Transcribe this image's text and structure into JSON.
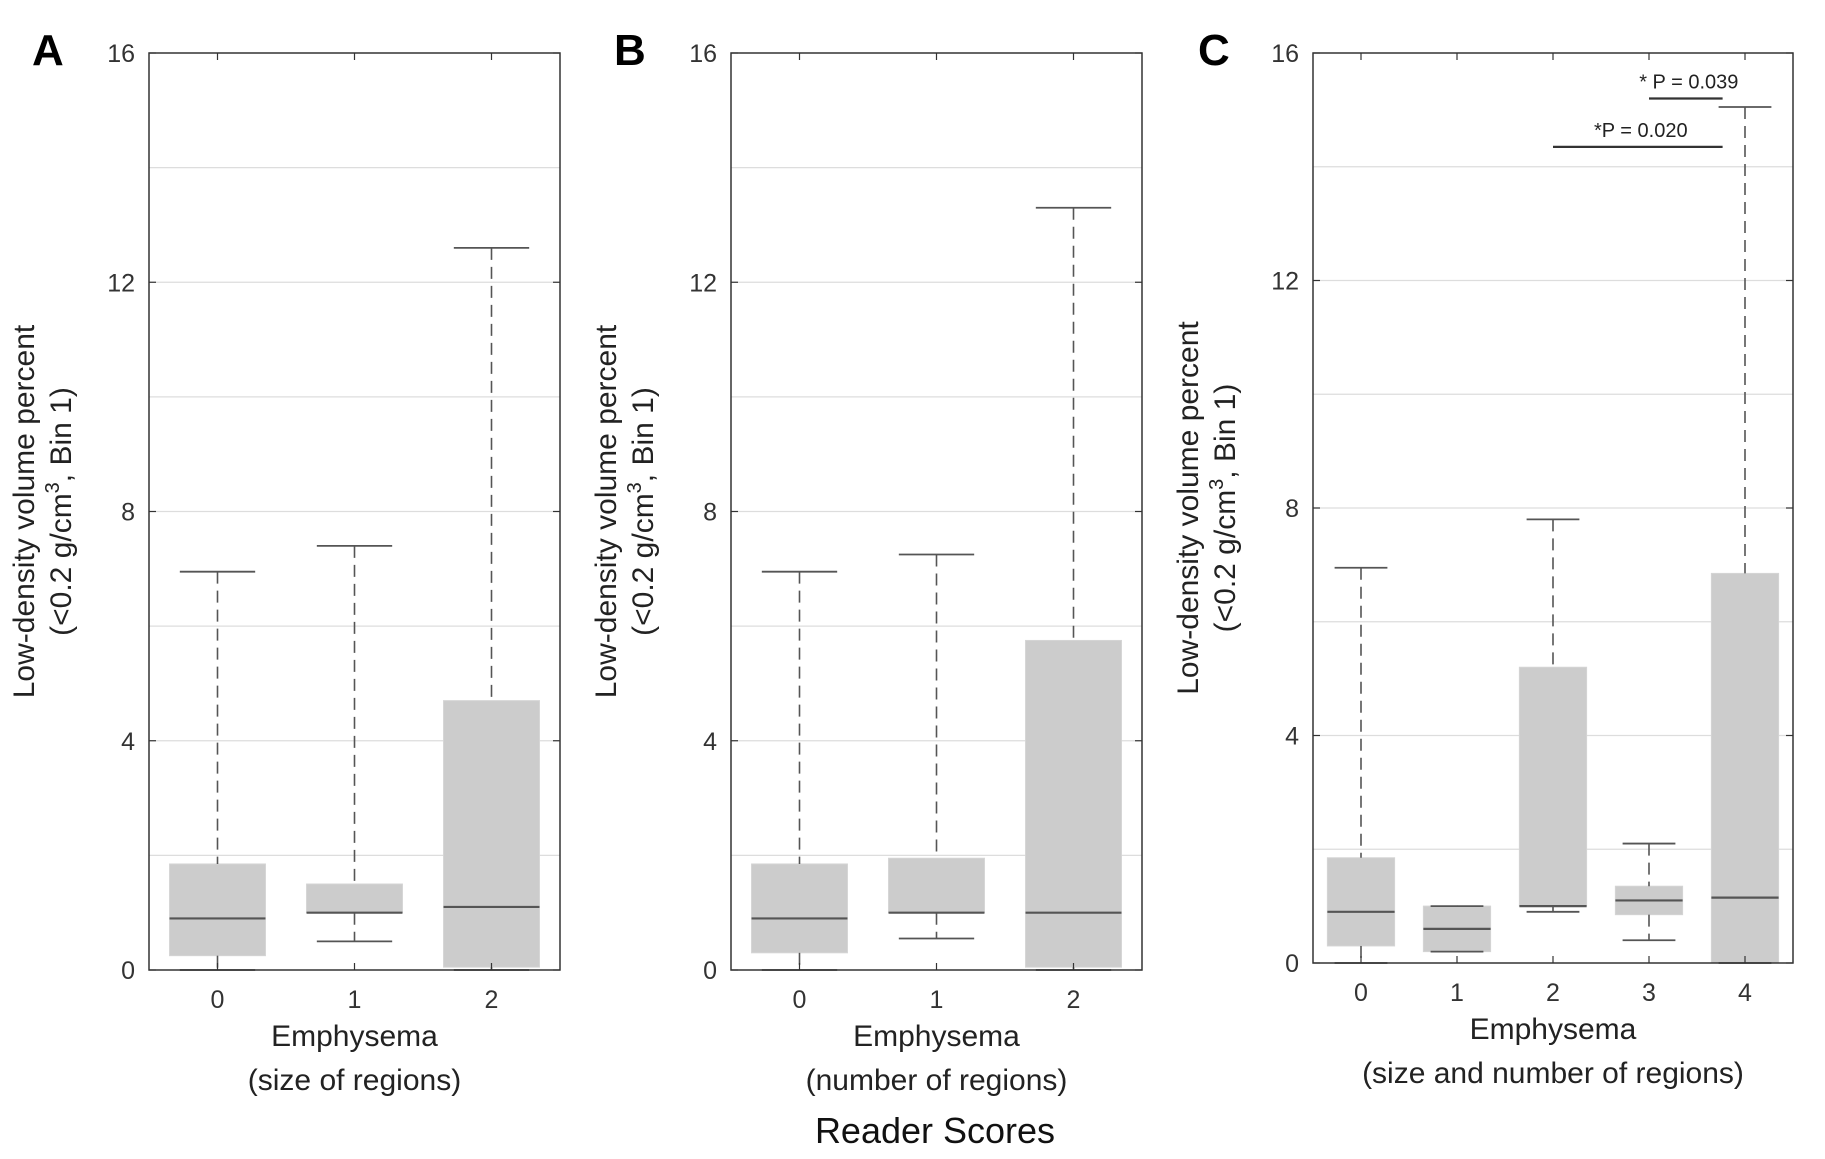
{
  "figure": {
    "xlabel": "Reader Scores",
    "colors": {
      "box": "#cccccc",
      "median": "#555555",
      "whisker": "#555555",
      "grid": "#dddddd",
      "frame": "#333333",
      "sig_line": "#333333"
    }
  },
  "chart_data": [
    {
      "panel": "A",
      "type": "box",
      "title": "",
      "categories": [
        "0",
        "1",
        "2"
      ],
      "boxes": [
        {
          "min": 0.0,
          "q1": 0.25,
          "median": 0.9,
          "q3": 1.85,
          "max": 6.95
        },
        {
          "min": 0.5,
          "q1": 1.0,
          "median": 1.0,
          "q3": 1.5,
          "max": 7.4
        },
        {
          "min": 0.0,
          "q1": 0.05,
          "median": 1.1,
          "q3": 4.7,
          "max": 12.6
        }
      ],
      "ylim": [
        0,
        16
      ],
      "yticks": [
        "0",
        "4",
        "8",
        "12",
        "16"
      ],
      "ylabel_line1": "Low-density volume percent",
      "ylabel_line2_pre": "(<0.2 g/cm",
      "ylabel_line2_sup": "3",
      "ylabel_line2_post": ", Bin 1)",
      "xlabel_line1": "Emphysema",
      "xlabel_line2": "(size of regions)",
      "significance": []
    },
    {
      "panel": "B",
      "type": "box",
      "title": "",
      "categories": [
        "0",
        "1",
        "2"
      ],
      "boxes": [
        {
          "min": 0.0,
          "q1": 0.3,
          "median": 0.9,
          "q3": 1.85,
          "max": 6.95
        },
        {
          "min": 0.55,
          "q1": 1.0,
          "median": 1.0,
          "q3": 1.95,
          "max": 7.25
        },
        {
          "min": 0.0,
          "q1": 0.05,
          "median": 1.0,
          "q3": 5.75,
          "max": 13.3
        }
      ],
      "ylim": [
        0,
        16
      ],
      "yticks": [
        "0",
        "4",
        "8",
        "12",
        "16"
      ],
      "ylabel_line1": "Low-density volume percent",
      "ylabel_line2_pre": "(<0.2 g/cm",
      "ylabel_line2_sup": "3",
      "ylabel_line2_post": ", Bin 1)",
      "xlabel_line1": "Emphysema",
      "xlabel_line2": "(number of regions)",
      "significance": []
    },
    {
      "panel": "C",
      "type": "box",
      "title": "",
      "categories": [
        "0",
        "1",
        "2",
        "3",
        "4"
      ],
      "boxes": [
        {
          "min": 0.0,
          "q1": 0.3,
          "median": 0.9,
          "q3": 1.85,
          "max": 6.95
        },
        {
          "min": 0.2,
          "q1": 0.2,
          "median": 0.6,
          "q3": 1.0,
          "max": 1.0
        },
        {
          "min": 0.9,
          "q1": 1.0,
          "median": 1.0,
          "q3": 5.2,
          "max": 7.8
        },
        {
          "min": 0.4,
          "q1": 0.85,
          "median": 1.1,
          "q3": 1.35,
          "max": 2.1
        },
        {
          "min": 0.0,
          "q1": 0.0,
          "median": 1.15,
          "q3": 6.85,
          "max": 15.05
        }
      ],
      "ylim": [
        0,
        16
      ],
      "yticks": [
        "0",
        "4",
        "8",
        "12",
        "16"
      ],
      "ylabel_line1": "Low-density volume percent",
      "ylabel_line2_pre": "(<0.2 g/cm",
      "ylabel_line2_sup": "3",
      "ylabel_line2_post": ", Bin 1)",
      "xlabel_line1": "Emphysema",
      "xlabel_line2": "(size and number of regions)",
      "significance": [
        {
          "from": "2",
          "to": "4",
          "y": 14.35,
          "label": "*P = 0.020"
        },
        {
          "from": "3",
          "to": "4",
          "y": 15.2,
          "label": "* P = 0.039"
        }
      ]
    }
  ]
}
